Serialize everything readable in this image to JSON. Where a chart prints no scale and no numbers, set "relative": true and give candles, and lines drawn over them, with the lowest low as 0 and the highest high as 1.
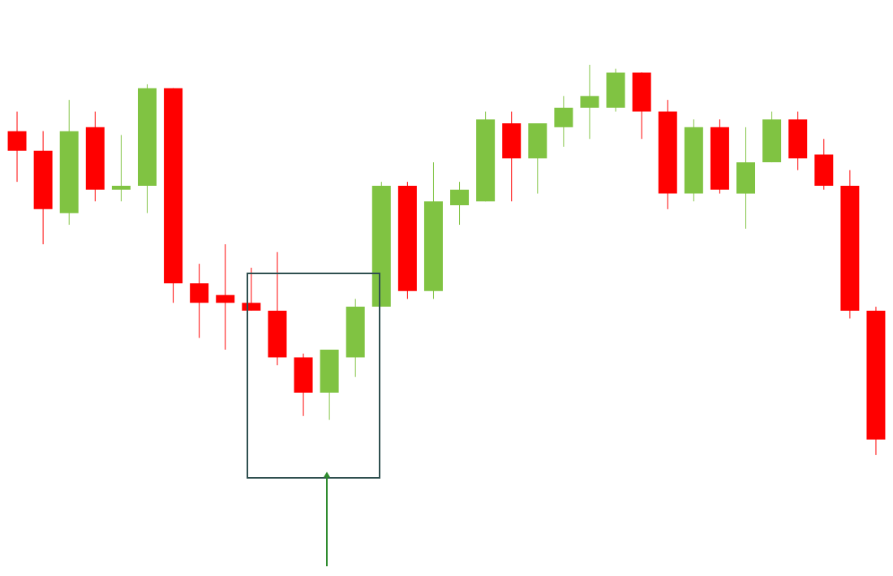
{
  "chart_data": {
    "type": "candlestick",
    "relative": true,
    "categories": [
      null,
      null,
      null,
      null,
      null,
      null,
      null,
      null,
      null,
      null,
      null,
      null,
      null,
      null,
      null,
      null,
      null,
      null,
      null,
      null,
      null,
      null,
      null,
      null,
      null,
      null,
      null,
      null,
      null,
      null,
      null,
      null,
      null,
      null
    ],
    "ohlc": [
      [
        0.83,
        0.88,
        0.7,
        0.78
      ],
      [
        0.78,
        0.83,
        0.54,
        0.63
      ],
      [
        0.62,
        0.91,
        0.59,
        0.83
      ],
      [
        0.84,
        0.88,
        0.65,
        0.68
      ],
      [
        0.68,
        0.82,
        0.65,
        0.69
      ],
      [
        0.69,
        0.95,
        0.62,
        0.94
      ],
      [
        0.94,
        0.94,
        0.39,
        0.44
      ],
      [
        0.44,
        0.49,
        0.3,
        0.39
      ],
      [
        0.41,
        0.54,
        0.27,
        0.39
      ],
      [
        0.39,
        0.48,
        0.37,
        0.37
      ],
      [
        0.37,
        0.52,
        0.23,
        0.25
      ],
      [
        0.25,
        0.26,
        0.1,
        0.16
      ],
      [
        0.16,
        0.27,
        0.09,
        0.27
      ],
      [
        0.25,
        0.4,
        0.2,
        0.38
      ],
      [
        0.38,
        0.7,
        0.38,
        0.69
      ],
      [
        0.69,
        0.7,
        0.4,
        0.42
      ],
      [
        0.42,
        0.75,
        0.4,
        0.65
      ],
      [
        0.64,
        0.7,
        0.59,
        0.68
      ],
      [
        0.65,
        0.88,
        0.65,
        0.86
      ],
      [
        0.85,
        0.88,
        0.65,
        0.76
      ],
      [
        0.76,
        0.85,
        0.67,
        0.85
      ],
      [
        0.84,
        0.92,
        0.79,
        0.89
      ],
      [
        0.89,
        1.0,
        0.81,
        0.92
      ],
      [
        0.89,
        0.99,
        0.88,
        0.98
      ],
      [
        0.98,
        0.98,
        0.81,
        0.88
      ],
      [
        0.88,
        0.91,
        0.63,
        0.67
      ],
      [
        0.67,
        0.86,
        0.65,
        0.84
      ],
      [
        0.84,
        0.86,
        0.67,
        0.68
      ],
      [
        0.67,
        0.84,
        0.58,
        0.75
      ],
      [
        0.75,
        0.88,
        0.75,
        0.86
      ],
      [
        0.86,
        0.88,
        0.73,
        0.76
      ],
      [
        0.77,
        0.81,
        0.68,
        0.69
      ],
      [
        0.69,
        0.73,
        0.35,
        0.37
      ],
      [
        0.37,
        0.38,
        0.0,
        0.04
      ]
    ],
    "colors": [
      "#ff0000",
      "#ff0000",
      "#80c342",
      "#ff0000",
      "#80c342",
      "#80c342",
      "#ff0000",
      "#ff0000",
      "#ff0000",
      "#ff0000",
      "#ff0000",
      "#ff0000",
      "#80c342",
      "#80c342",
      "#80c342",
      "#ff0000",
      "#80c342",
      "#80c342",
      "#80c342",
      "#ff0000",
      "#80c342",
      "#80c342",
      "#80c342",
      "#80c342",
      "#ff0000",
      "#ff0000",
      "#80c342",
      "#ff0000",
      "#80c342",
      "#80c342",
      "#ff0000",
      "#ff0000",
      "#ff0000",
      "#ff0000"
    ]
  }
}
